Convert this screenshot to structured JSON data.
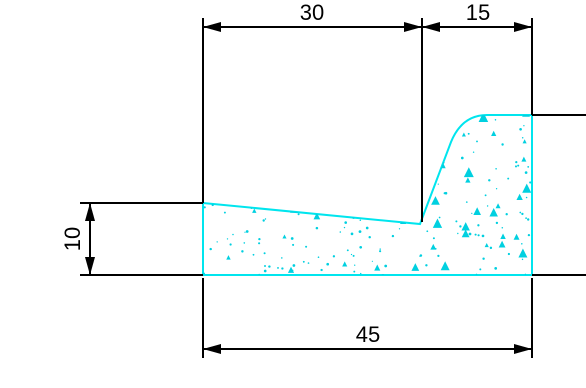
{
  "drawing": {
    "dimensions": {
      "top_left": "30",
      "top_right": "15",
      "left_height": "10",
      "bottom_total": "45"
    },
    "colors": {
      "outline": "#00e5ee",
      "dimension_lines": "#000000",
      "fill_pattern": "#00d0e0"
    }
  }
}
